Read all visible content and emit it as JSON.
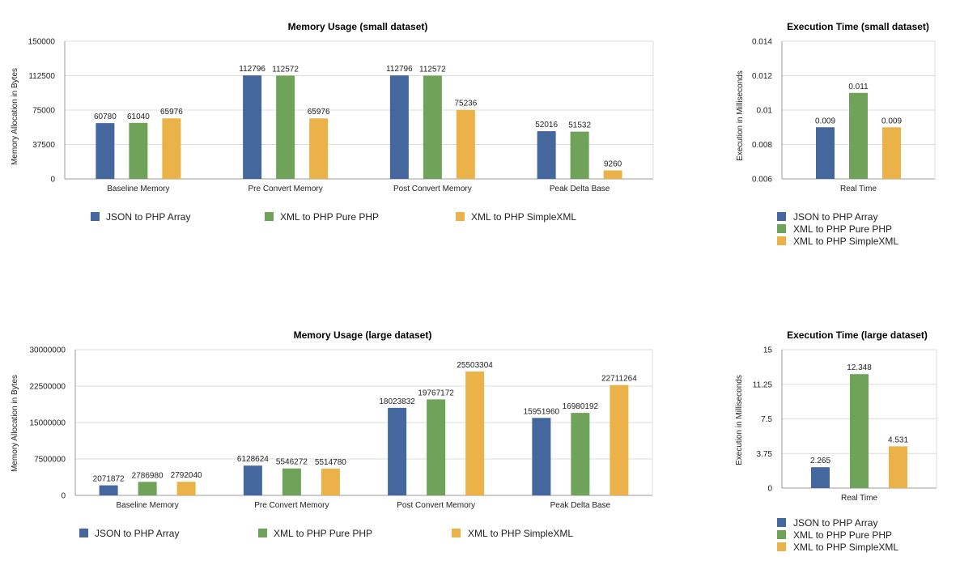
{
  "colors": {
    "json": "#44679e",
    "pure": "#6ea359",
    "simple": "#ecb24a",
    "grid": "#dcdcdc",
    "axis": "#999999"
  },
  "chart_data": [
    {
      "type": "bar",
      "title": "Memory Usage (small dataset)",
      "ylabel": "Memory Allocation in Bytes",
      "xlabel": "",
      "categories": [
        "Baseline Memory",
        "Pre Convert Memory",
        "Post Convert Memory",
        "Peak Delta Base"
      ],
      "ylim": [
        0,
        150000
      ],
      "yticks": [
        "0",
        "37500",
        "75000",
        "112500",
        "150000"
      ],
      "ytick_values": [
        0,
        37500,
        75000,
        112500,
        150000
      ],
      "series": [
        {
          "name": "JSON to PHP Array",
          "values": [
            60780,
            112796,
            112796,
            52016
          ],
          "labels": [
            "60780",
            "112796",
            "112796",
            "52016"
          ]
        },
        {
          "name": "XML to PHP Pure PHP",
          "values": [
            61040,
            112572,
            112572,
            51532
          ],
          "labels": [
            "61040",
            "112572",
            "112572",
            "51532"
          ]
        },
        {
          "name": "XML to PHP SimpleXML",
          "values": [
            65976,
            65976,
            75236,
            9260
          ],
          "labels": [
            "65976",
            "65976",
            "75236",
            "9260"
          ]
        }
      ],
      "legend": "bottom",
      "grid": true
    },
    {
      "type": "bar",
      "title": "Execution Time (small dataset)",
      "ylabel": "Execution in Milliseconds",
      "xlabel": "",
      "categories": [
        "Real Time"
      ],
      "ylim": [
        0.006,
        0.014
      ],
      "yticks": [
        "0.006",
        "0.008",
        "0.01",
        "0.012",
        "0.014"
      ],
      "ytick_values": [
        0.006,
        0.008,
        0.01,
        0.012,
        0.014
      ],
      "series": [
        {
          "name": "JSON to PHP Array",
          "values": [
            0.009
          ],
          "labels": [
            "0.009"
          ]
        },
        {
          "name": "XML to PHP Pure PHP",
          "values": [
            0.011
          ],
          "labels": [
            "0.011"
          ]
        },
        {
          "name": "XML to PHP SimpleXML",
          "values": [
            0.009
          ],
          "labels": [
            "0.009"
          ]
        }
      ],
      "legend": "bottom",
      "grid": true
    },
    {
      "type": "bar",
      "title": "Memory Usage (large dataset)",
      "ylabel": "Memory Allocation in Bytes",
      "xlabel": "",
      "categories": [
        "Baseline Memory",
        "Pre Convert Memory",
        "Post Convert Memory",
        "Peak Delta Base"
      ],
      "ylim": [
        0,
        30000000
      ],
      "yticks": [
        "0",
        "7500000",
        "15000000",
        "22500000",
        "30000000"
      ],
      "ytick_values": [
        0,
        7500000,
        15000000,
        22500000,
        30000000
      ],
      "series": [
        {
          "name": "JSON to PHP Array",
          "values": [
            2071872,
            6128624,
            18023832,
            15951960
          ],
          "labels": [
            "2071872",
            "6128624",
            "18023832",
            "15951960"
          ]
        },
        {
          "name": "XML to PHP Pure PHP",
          "values": [
            2786980,
            5546272,
            19767172,
            16980192
          ],
          "labels": [
            "2786980",
            "5546272",
            "19767172",
            "16980192"
          ]
        },
        {
          "name": "XML to PHP SimpleXML",
          "values": [
            2792040,
            5514780,
            25503304,
            22711264
          ],
          "labels": [
            "2792040",
            "5514780",
            "25503304",
            "22711264"
          ]
        }
      ],
      "legend": "bottom",
      "grid": true
    },
    {
      "type": "bar",
      "title": "Execution Time (large dataset)",
      "ylabel": "Execution in Milliseconds",
      "xlabel": "",
      "categories": [
        "Real Time"
      ],
      "ylim": [
        0,
        15
      ],
      "yticks": [
        "0",
        "3.75",
        "7.5",
        "11.25",
        "15"
      ],
      "ytick_values": [
        0,
        3.75,
        7.5,
        11.25,
        15
      ],
      "series": [
        {
          "name": "JSON to PHP Array",
          "values": [
            2.265
          ],
          "labels": [
            "2.265"
          ]
        },
        {
          "name": "XML to PHP Pure PHP",
          "values": [
            12.348
          ],
          "labels": [
            "12.348"
          ]
        },
        {
          "name": "XML to PHP SimpleXML",
          "values": [
            4.531
          ],
          "labels": [
            "4.531"
          ]
        }
      ],
      "legend": "bottom",
      "grid": true
    }
  ]
}
